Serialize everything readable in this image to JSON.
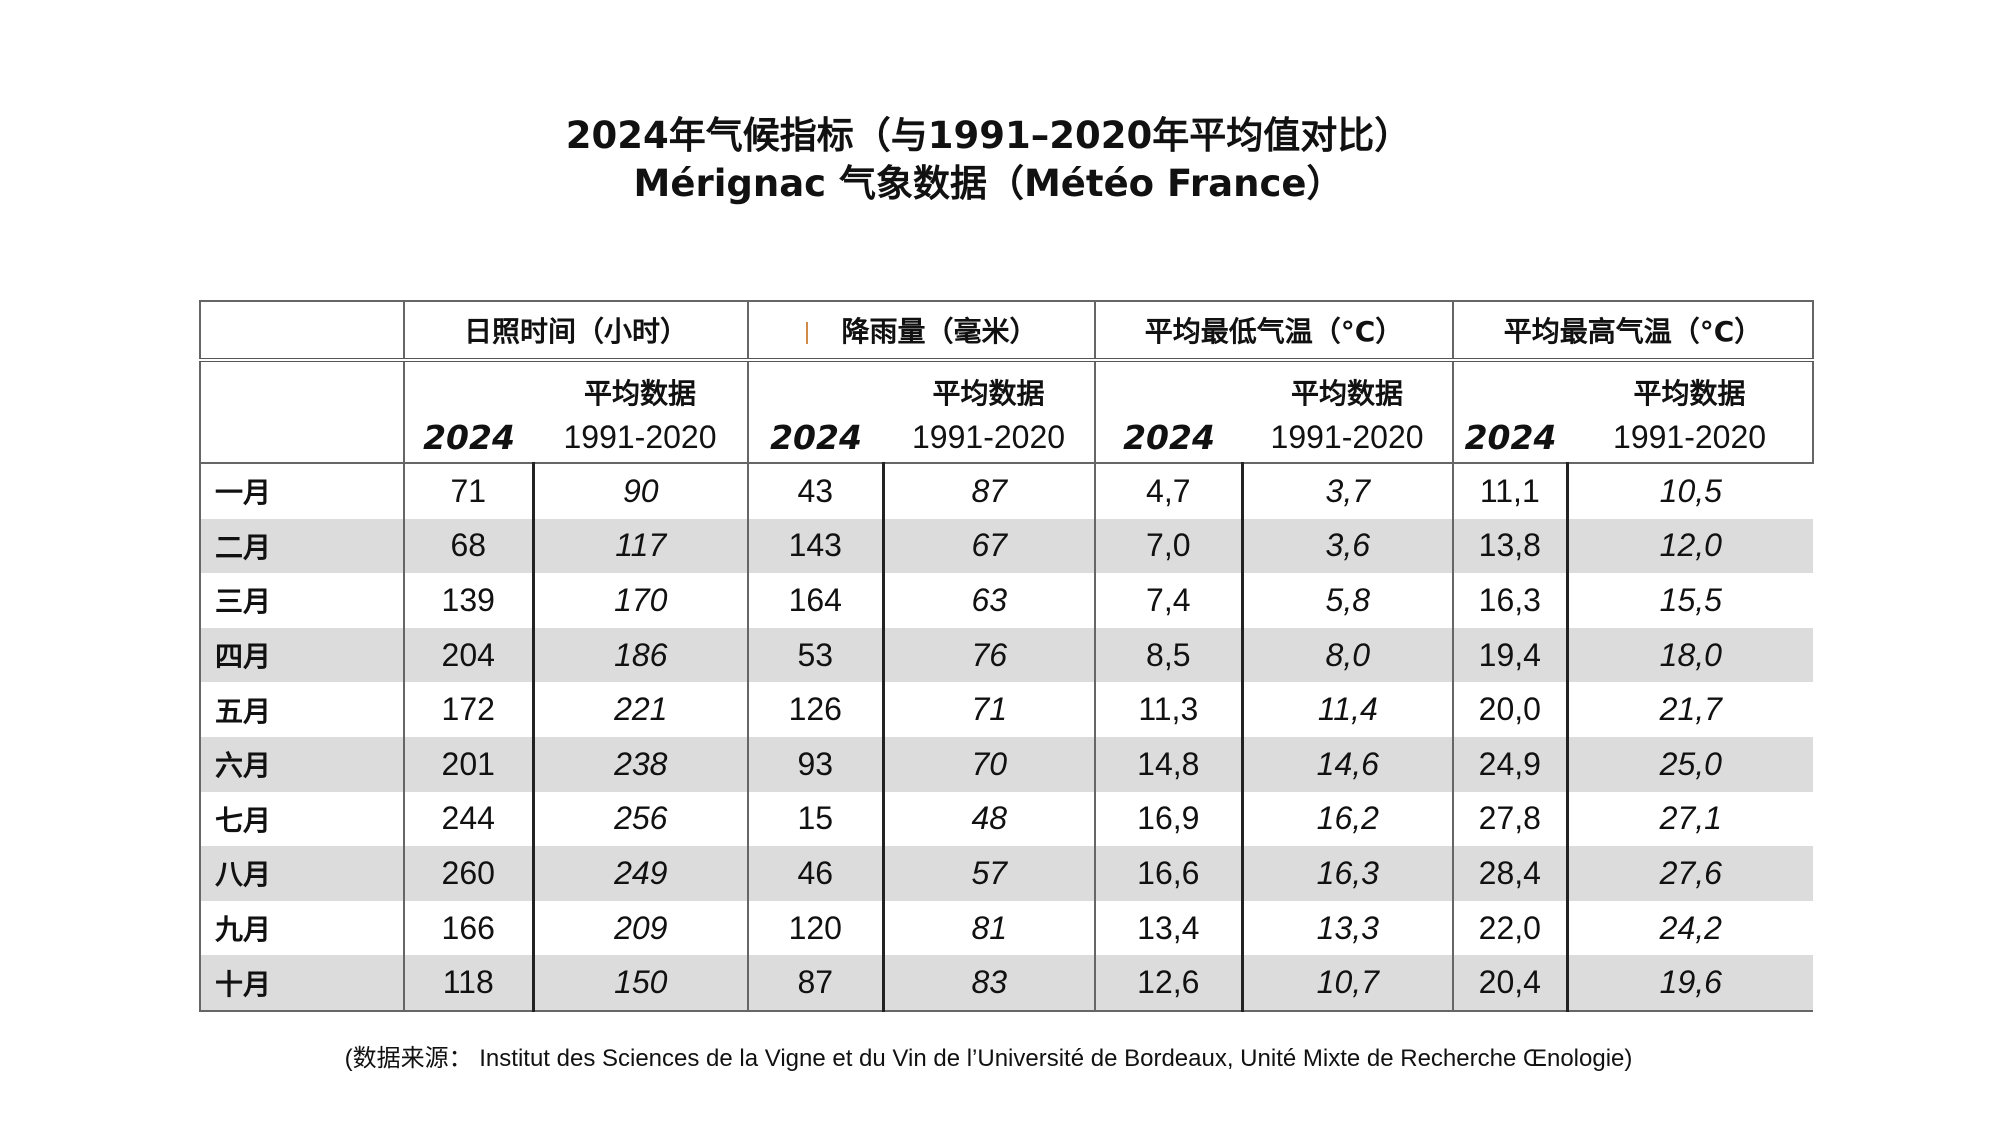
{
  "title": {
    "line1": "2024年气候指标（与1991–2020年平均值对比）",
    "line2": "Mérignac 气象数据（Météo France）"
  },
  "table": {
    "groups": [
      "日照时间（小时）",
      "降雨量（毫米）",
      "平均最低气温（°C）",
      "平均最高气温（°C）"
    ],
    "avg_label": "平均数据",
    "year_label": "2024",
    "period_label": "1991-2020",
    "rows": [
      {
        "month": "一月",
        "values": [
          "71",
          "90",
          "43",
          "87",
          "4,7",
          "3,7",
          "11,1",
          "10,5"
        ]
      },
      {
        "month": "二月",
        "values": [
          "68",
          "117",
          "143",
          "67",
          "7,0",
          "3,6",
          "13,8",
          "12,0"
        ]
      },
      {
        "month": "三月",
        "values": [
          "139",
          "170",
          "164",
          "63",
          "7,4",
          "5,8",
          "16,3",
          "15,5"
        ]
      },
      {
        "month": "四月",
        "values": [
          "204",
          "186",
          "53",
          "76",
          "8,5",
          "8,0",
          "19,4",
          "18,0"
        ]
      },
      {
        "month": "五月",
        "values": [
          "172",
          "221",
          "126",
          "71",
          "11,3",
          "11,4",
          "20,0",
          "21,7"
        ]
      },
      {
        "month": "六月",
        "values": [
          "201",
          "238",
          "93",
          "70",
          "14,8",
          "14,6",
          "24,9",
          "25,0"
        ]
      },
      {
        "month": "七月",
        "values": [
          "244",
          "256",
          "15",
          "48",
          "16,9",
          "16,2",
          "27,8",
          "27,1"
        ]
      },
      {
        "month": "八月",
        "values": [
          "260",
          "249",
          "46",
          "57",
          "16,6",
          "16,3",
          "28,4",
          "27,6"
        ]
      },
      {
        "month": "九月",
        "values": [
          "166",
          "209",
          "120",
          "81",
          "13,4",
          "13,3",
          "22,0",
          "24,2"
        ]
      },
      {
        "month": "十月",
        "values": [
          "118",
          "150",
          "87",
          "83",
          "12,6",
          "10,7",
          "20,4",
          "19,6"
        ]
      }
    ]
  },
  "source": "(数据来源： Institut des Sciences de la Vigne et du Vin de l’Université de Bordeaux, Unité Mixte de Recherche Œnologie)",
  "colors": {
    "row_shade": "#dcdcdc",
    "border": "#666666",
    "text": "#111111"
  }
}
